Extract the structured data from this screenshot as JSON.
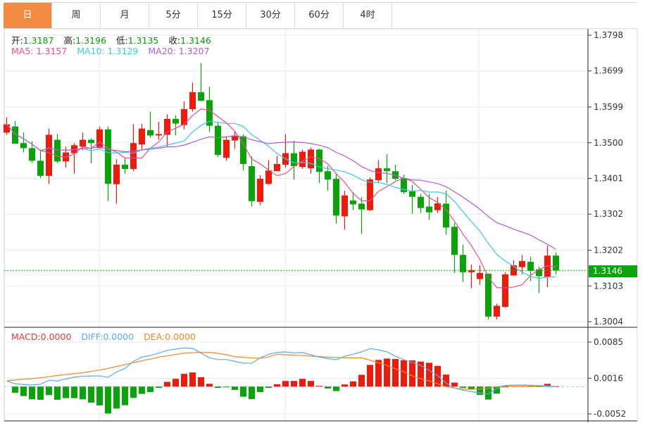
{
  "tabs": [
    {
      "label": "日",
      "active": true
    },
    {
      "label": "周"
    },
    {
      "label": "月"
    },
    {
      "label": "5分"
    },
    {
      "label": "15分"
    },
    {
      "label": "30分"
    },
    {
      "label": "60分"
    },
    {
      "label": "4时"
    }
  ],
  "ohlc_legend": {
    "open_label": "开:",
    "open": "1.3187",
    "high_label": "高:",
    "high": "1.3196",
    "low_label": "低:",
    "low": "1.3135",
    "close_label": "收:",
    "close": "1.3146"
  },
  "ma_legend": {
    "ma5": "MA5: 1.3157",
    "ma10": "MA10: 1.3129",
    "ma20": "MA20: 1.3207"
  },
  "macd_legend": {
    "macd": "MACD:0.0000",
    "diff": "DIFF:0.0000",
    "dea": "DEA:0.0000"
  },
  "current_price": "1.3146",
  "colors": {
    "up": "#f01a0a",
    "down": "#08a408",
    "ma5": "#ee4f86",
    "ma10": "#3ec8e2",
    "ma20": "#b25ccc",
    "diff": "#5aaaf0",
    "dea": "#f7862a",
    "accent": "#f28c42",
    "grid": "#e3ebf1"
  },
  "chart_data": [
    {
      "type": "candlestick",
      "title": "",
      "ylim": [
        1.3004,
        1.3798
      ],
      "yticks": [
        "1.3798",
        "1.3699",
        "1.3599",
        "1.3500",
        "1.3401",
        "1.3302",
        "1.3202",
        "1.3103",
        "1.3004"
      ],
      "grid": true,
      "ma_periods": [
        5,
        10,
        20
      ],
      "candles": [
        [
          1.3528,
          1.357,
          1.3522,
          1.3551
        ],
        [
          1.3545,
          1.356,
          1.3497,
          1.3497
        ],
        [
          1.3499,
          1.3528,
          1.3473,
          1.3485
        ],
        [
          1.3485,
          1.3504,
          1.3444,
          1.345
        ],
        [
          1.345,
          1.3477,
          1.3402,
          1.3408
        ],
        [
          1.3408,
          1.3539,
          1.3386,
          1.3522
        ],
        [
          1.3508,
          1.3524,
          1.3443,
          1.3448
        ],
        [
          1.3448,
          1.3489,
          1.3431,
          1.3473
        ],
        [
          1.3471,
          1.3499,
          1.3414,
          1.3493
        ],
        [
          1.3489,
          1.3528,
          1.3479,
          1.3508
        ],
        [
          1.3508,
          1.3512,
          1.3443,
          1.3499
        ],
        [
          1.3485,
          1.3545,
          1.3485,
          1.3537
        ],
        [
          1.3537,
          1.3545,
          1.3338,
          1.3386
        ],
        [
          1.3385,
          1.3454,
          1.3331,
          1.3439
        ],
        [
          1.3439,
          1.3456,
          1.3414,
          1.3427
        ],
        [
          1.3427,
          1.3551,
          1.3421,
          1.3499
        ],
        [
          1.3495,
          1.3553,
          1.3479,
          1.3539
        ],
        [
          1.3535,
          1.3586,
          1.3514,
          1.352
        ],
        [
          1.352,
          1.3558,
          1.3508,
          1.3524
        ],
        [
          1.3522,
          1.3578,
          1.3489,
          1.3566
        ],
        [
          1.3566,
          1.3576,
          1.352,
          1.3553
        ],
        [
          1.3549,
          1.3615,
          1.3537,
          1.3593
        ],
        [
          1.3593,
          1.3667,
          1.3586,
          1.364
        ],
        [
          1.364,
          1.3721,
          1.3615,
          1.3616
        ],
        [
          1.3618,
          1.3655,
          1.353,
          1.3547
        ],
        [
          1.3547,
          1.3555,
          1.346,
          1.3466
        ],
        [
          1.3458,
          1.3516,
          1.345,
          1.3508
        ],
        [
          1.3506,
          1.3531,
          1.3483,
          1.352
        ],
        [
          1.3518,
          1.3524,
          1.3423,
          1.3441
        ],
        [
          1.3435,
          1.3462,
          1.3323,
          1.3338
        ],
        [
          1.3336,
          1.341,
          1.3327,
          1.34
        ],
        [
          1.3386,
          1.3452,
          1.3383,
          1.3423
        ],
        [
          1.3421,
          1.3464,
          1.3421,
          1.3441
        ],
        [
          1.3439,
          1.3524,
          1.3431,
          1.3471
        ],
        [
          1.3471,
          1.3506,
          1.3398,
          1.3435
        ],
        [
          1.3433,
          1.3481,
          1.3427,
          1.3475
        ],
        [
          1.3429,
          1.3487,
          1.3414,
          1.3481
        ],
        [
          1.3481,
          1.3483,
          1.3388,
          1.3419
        ],
        [
          1.3421,
          1.3435,
          1.3367,
          1.3398
        ],
        [
          1.34,
          1.3414,
          1.3276,
          1.3298
        ],
        [
          1.3296,
          1.3367,
          1.3259,
          1.3354
        ],
        [
          1.334,
          1.3363,
          1.3313,
          1.3329
        ],
        [
          1.3331,
          1.335,
          1.3247,
          1.3315
        ],
        [
          1.3313,
          1.3404,
          1.3311,
          1.3398
        ],
        [
          1.3396,
          1.3452,
          1.3388,
          1.3429
        ],
        [
          1.3429,
          1.3468,
          1.3388,
          1.3421
        ],
        [
          1.3421,
          1.3439,
          1.3396,
          1.34
        ],
        [
          1.3402,
          1.3412,
          1.3358,
          1.3363
        ],
        [
          1.3365,
          1.3383,
          1.3303,
          1.335
        ],
        [
          1.335,
          1.3358,
          1.3305,
          1.3319
        ],
        [
          1.3323,
          1.3358,
          1.3286,
          1.3307
        ],
        [
          1.3313,
          1.335,
          1.3305,
          1.3332
        ],
        [
          1.3331,
          1.3367,
          1.3245,
          1.3265
        ],
        [
          1.3267,
          1.3278,
          1.3139,
          1.3189
        ],
        [
          1.3189,
          1.3217,
          1.3114,
          1.3141
        ],
        [
          1.3141,
          1.3162,
          1.3097,
          1.3147
        ],
        [
          1.3122,
          1.316,
          1.3106,
          1.3139
        ],
        [
          1.3137,
          1.3137,
          1.301,
          1.3018
        ],
        [
          1.3018,
          1.3054,
          1.301,
          1.3048
        ],
        [
          1.3045,
          1.3141,
          1.3043,
          1.3135
        ],
        [
          1.3132,
          1.3174,
          1.3132,
          1.316
        ],
        [
          1.3155,
          1.3189,
          1.3135,
          1.3172
        ],
        [
          1.317,
          1.3184,
          1.3116,
          1.3145
        ],
        [
          1.3149,
          1.3157,
          1.3083,
          1.313
        ],
        [
          1.3128,
          1.3215,
          1.3099,
          1.3187
        ],
        [
          1.3187,
          1.3196,
          1.3135,
          1.3146
        ]
      ],
      "candle_format": [
        "open",
        "high",
        "low",
        "close"
      ],
      "last_price": 1.3146
    },
    {
      "type": "macd",
      "ylim": [
        -0.0052,
        0.0085
      ],
      "yticks": [
        "0.0085",
        "0.0016",
        "-0.0052"
      ],
      "histogram": [
        0,
        -0.00117,
        -0.0018,
        -0.00243,
        -0.00252,
        -0.00162,
        -0.00252,
        -0.0022,
        -0.0022,
        -0.00243,
        -0.00306,
        -0.0036,
        -0.00513,
        -0.00419,
        -0.00355,
        -0.00216,
        -0.00139,
        -0.00104,
        -0.00023,
        0.0009,
        0.00149,
        0.00243,
        0.0027,
        0.0018,
        0.00054,
        -0.00023,
        -7e-05,
        -0.00063,
        -0.00193,
        -0.00239,
        -0.00104,
        -0.00023,
        0.00045,
        0.00108,
        0.00108,
        0.00149,
        0.00108,
        0.00014,
        -0.00036,
        -0.00085,
        0.00041,
        0.00099,
        0.00225,
        0.00414,
        0.00509,
        0.00536,
        0.00527,
        0.00504,
        0.005,
        0.00477,
        0.00455,
        0.00396,
        0.0023,
        0.00077,
        -0.00023,
        -0.00058,
        -0.00158,
        -0.00247,
        -0.00135,
        -0.00014,
        0.00014,
        0.00014,
        7e-05,
        7e-05,
        0.00054,
        7e-05
      ],
      "diff": [
        0.00108,
        0.00054,
        0.00041,
        0.00031,
        0.00045,
        0.00122,
        0.00108,
        0.00144,
        0.0018,
        0.00198,
        0.00203,
        0.00203,
        0.00176,
        0.00279,
        0.00347,
        0.00482,
        0.00563,
        0.00594,
        0.00639,
        0.00693,
        0.00716,
        0.00738,
        0.00729,
        0.00639,
        0.00549,
        0.00517,
        0.00517,
        0.00482,
        0.00446,
        0.00446,
        0.00549,
        0.00617,
        0.00652,
        0.00662,
        0.00641,
        0.00652,
        0.00608,
        0.00563,
        0.00536,
        0.00513,
        0.00581,
        0.00617,
        0.00662,
        0.00725,
        0.00702,
        0.00662,
        0.00581,
        0.00513,
        0.00459,
        0.00405,
        0.00311,
        0.00209,
        0.00068,
        -0.00027,
        -0.00068,
        -0.00095,
        -0.00122,
        -0.00142,
        -0.00034,
        0.00023,
        0.0003,
        0.00031,
        0.00027,
        0.0002,
        0.00014,
        0
      ],
      "dea": [
        0.00108,
        0.00128,
        0.00142,
        0.00153,
        0.00169,
        0.00189,
        0.00212,
        0.0023,
        0.00247,
        0.00266,
        0.0029,
        0.00317,
        0.00347,
        0.00385,
        0.00419,
        0.00459,
        0.00493,
        0.00527,
        0.00563,
        0.00587,
        0.00614,
        0.00639,
        0.00648,
        0.00652,
        0.00652,
        0.00635,
        0.00608,
        0.00571,
        0.0056,
        0.00547,
        0.0054,
        0.00567,
        0.00617,
        0.00608,
        0.00601,
        0.00594,
        0.00581,
        0.00574,
        0.00563,
        0.00556,
        0.00549,
        0.00549,
        0.00549,
        0.00504,
        0.00452,
        0.00405,
        0.00338,
        0.00284,
        0.00203,
        0.00149,
        0.00108,
        0.00054,
        0,
        -0.00027,
        -0.00047,
        -0.0005,
        -0.00045,
        -0.00034,
        0,
        7e-05,
        9e-05,
        9e-05,
        7e-05,
        7e-05,
        4e-05,
        0
      ]
    }
  ]
}
